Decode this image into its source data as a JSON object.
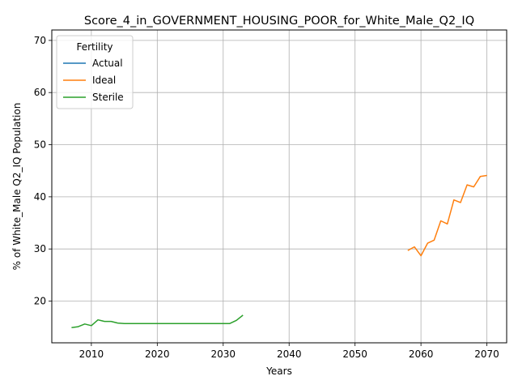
{
  "chart_data": {
    "type": "line",
    "title": "Score_4_in_GOVERNMENT_HOUSING_POOR_for_White_Male_Q2_IQ",
    "xlabel": "Years",
    "ylabel": "% of White_Male Q2_IQ Population",
    "xlim": [
      2004,
      2073
    ],
    "ylim": [
      12,
      72
    ],
    "xticks": [
      2010,
      2020,
      2030,
      2040,
      2050,
      2060,
      2070
    ],
    "yticks": [
      20,
      30,
      40,
      50,
      60,
      70
    ],
    "grid": true,
    "legend": {
      "title": "Fertility",
      "placement": "top-left"
    },
    "series": [
      {
        "name": "Actual",
        "color": "#1f77b4",
        "x": [],
        "y": []
      },
      {
        "name": "Ideal",
        "color": "#ff7f0e",
        "x": [
          2058,
          2059,
          2060,
          2061,
          2062,
          2063,
          2064,
          2065,
          2066,
          2067,
          2068,
          2069,
          2070
        ],
        "y": [
          29.7,
          30.4,
          28.7,
          31.1,
          31.7,
          35.4,
          34.8,
          39.4,
          38.9,
          42.3,
          41.9,
          43.9,
          44.1
        ]
      },
      {
        "name": "Sterile",
        "color": "#2ca02c",
        "x": [
          2007,
          2008,
          2009,
          2010,
          2011,
          2012,
          2013,
          2014,
          2015,
          2016,
          2017,
          2018,
          2019,
          2020,
          2021,
          2022,
          2023,
          2024,
          2025,
          2026,
          2027,
          2028,
          2029,
          2030,
          2031,
          2032,
          2033
        ],
        "y": [
          14.9,
          15.1,
          15.6,
          15.3,
          16.4,
          16.1,
          16.1,
          15.8,
          15.7,
          15.7,
          15.7,
          15.7,
          15.7,
          15.7,
          15.7,
          15.7,
          15.7,
          15.7,
          15.7,
          15.7,
          15.7,
          15.7,
          15.7,
          15.7,
          15.7,
          16.3,
          17.3
        ]
      }
    ]
  }
}
